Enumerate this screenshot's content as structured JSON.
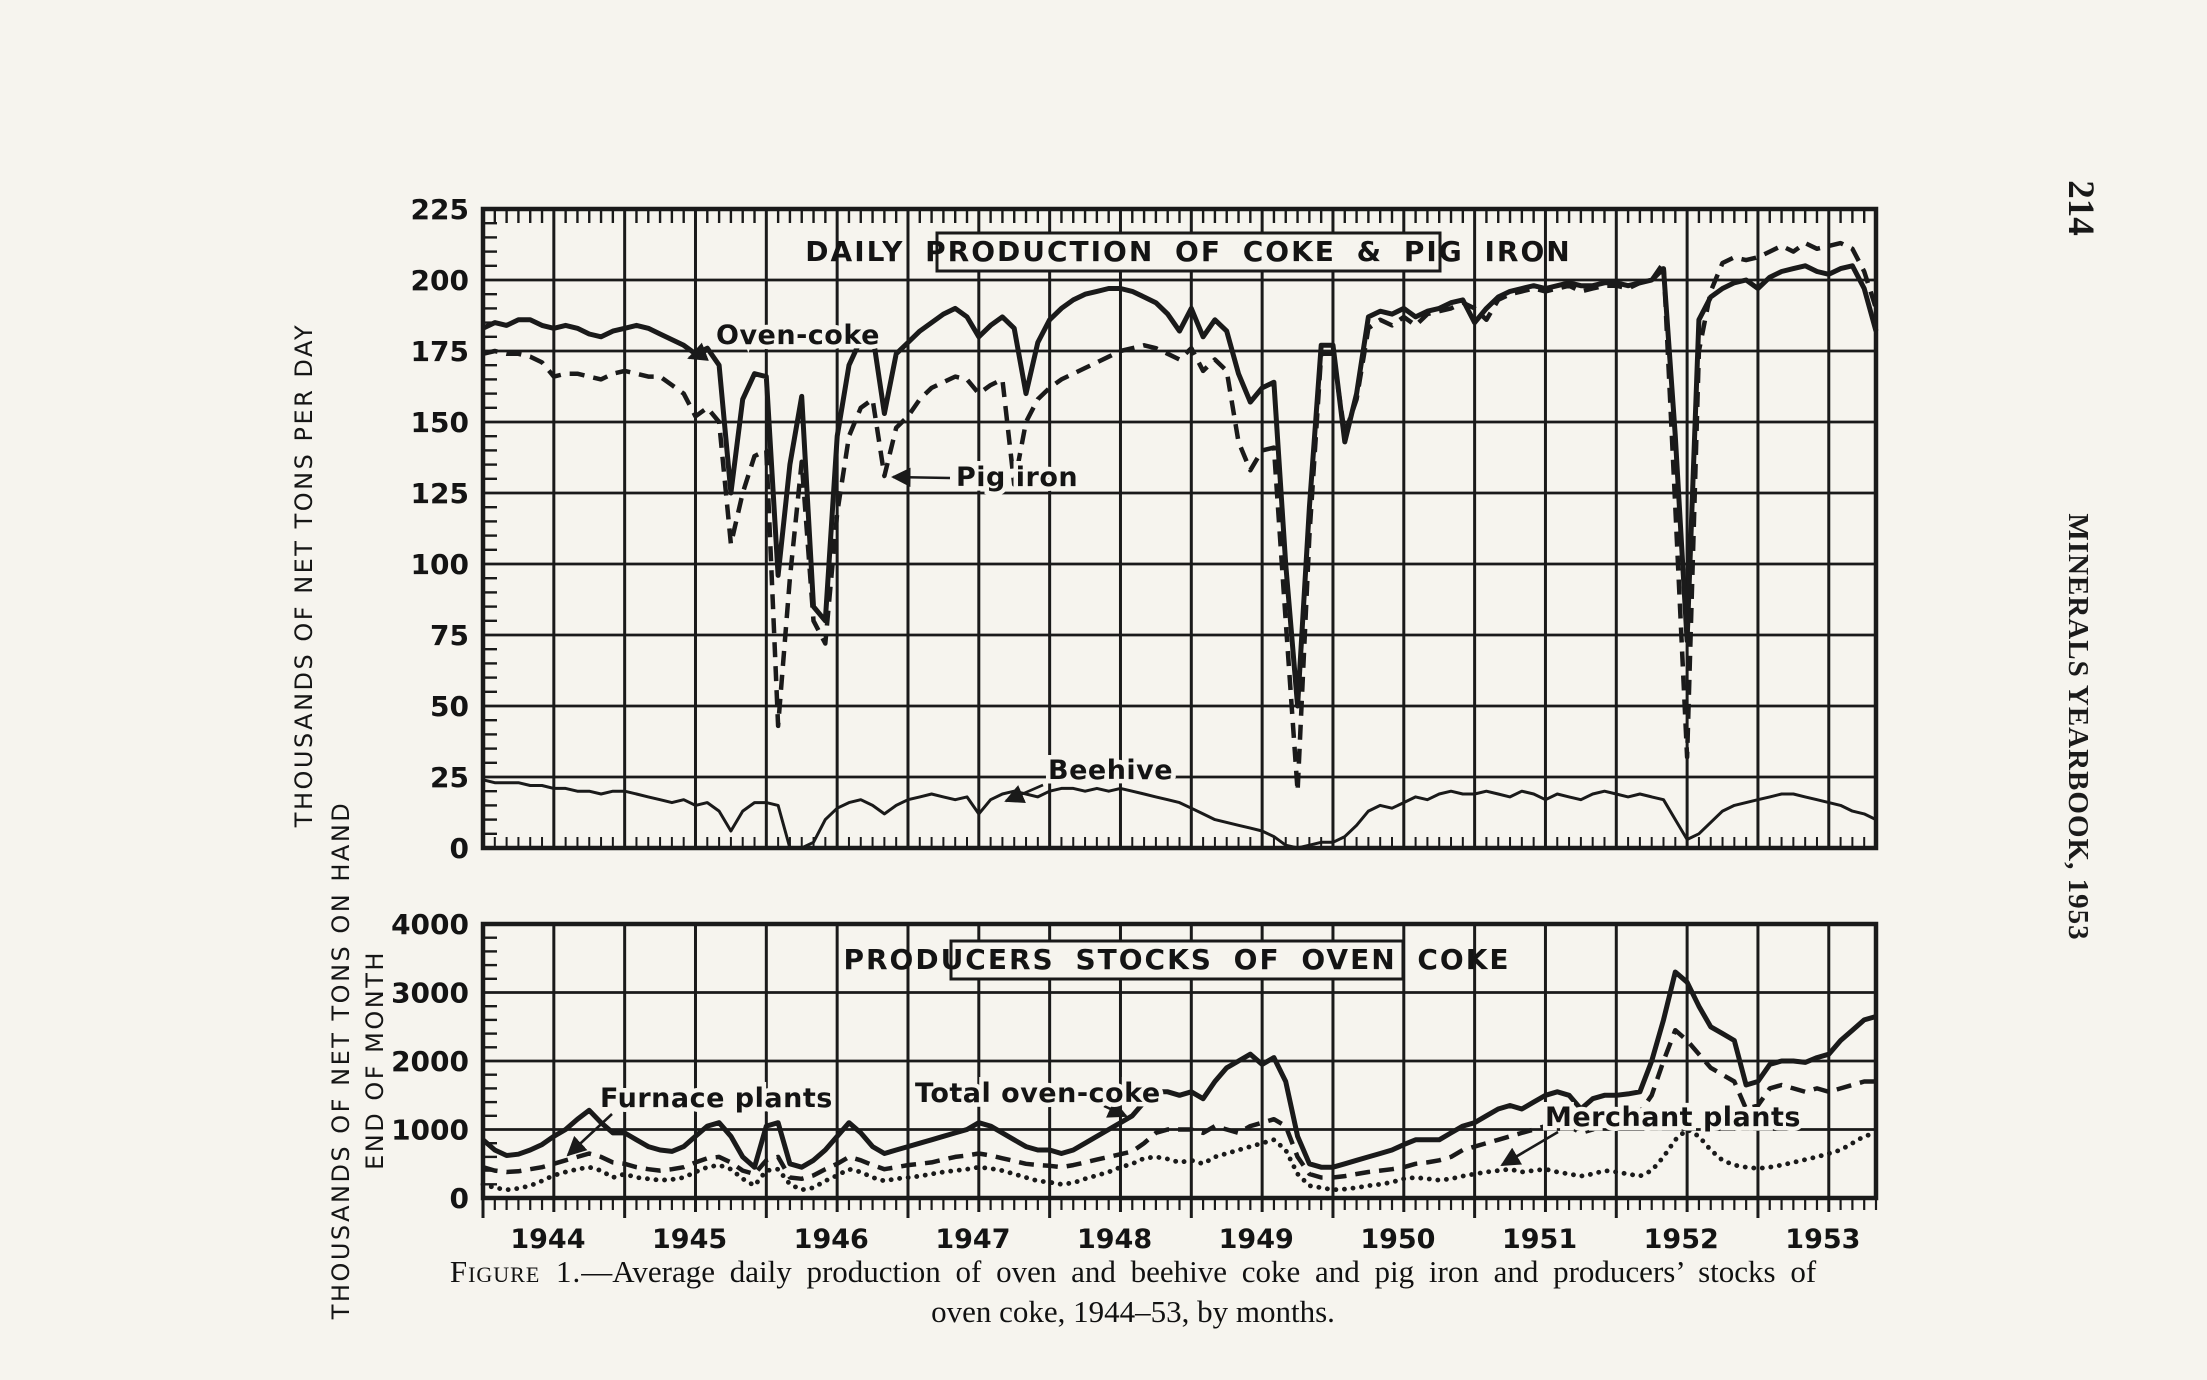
{
  "page": {
    "page_number": "214",
    "running_head": "MINERALS YEARBOOK, 1953",
    "caption": {
      "figure_label": "Figure 1.",
      "line1": "—Average daily production of oven and beehive coke and pig iron and producers’ stocks of",
      "line2": "oven coke, 1944–53, by months."
    }
  },
  "chart_data": [
    {
      "type": "line",
      "title": "DAILY PRODUCTION OF COKE & PIG IRON",
      "ylabel": "THOUSANDS OF NET TONS PER DAY",
      "ylim": [
        0,
        225
      ],
      "ytick_step": 25,
      "ytick_minor": 5,
      "x_years": [
        1944,
        1945,
        1946,
        1947,
        1948,
        1949,
        1950,
        1951,
        1952,
        1953
      ],
      "x_unit": "months",
      "x_start": "1944-01",
      "x_end": "1953-11",
      "grid": "vertical every 6 months, horizontal every 25 units",
      "series": [
        {
          "name": "Oven-coke",
          "style": "solid-bold",
          "values": [
            183,
            185,
            184,
            186,
            186,
            184,
            183,
            184,
            183,
            181,
            180,
            182,
            183,
            184,
            183,
            181,
            179,
            177,
            174,
            176,
            170,
            125,
            158,
            167,
            166,
            96,
            135,
            159,
            85,
            80,
            145,
            170,
            179,
            181,
            153,
            174,
            178,
            182,
            185,
            188,
            190,
            187,
            180,
            184,
            187,
            183,
            160,
            178,
            186,
            190,
            193,
            195,
            196,
            197,
            197,
            196,
            194,
            192,
            188,
            182,
            190,
            180,
            186,
            182,
            167,
            157,
            162,
            164,
            100,
            50,
            120,
            177,
            177,
            143,
            160,
            187,
            189,
            188,
            190,
            187,
            189,
            190,
            192,
            193,
            185,
            190,
            194,
            196,
            197,
            198,
            197,
            198,
            199,
            198,
            198,
            199,
            199,
            198,
            199,
            200,
            204,
            145,
            73,
            186,
            194,
            197,
            199,
            200,
            197,
            201,
            203,
            204,
            205,
            203,
            202,
            204,
            205,
            197,
            182
          ]
        },
        {
          "name": "Pig iron",
          "style": "dashed",
          "values": [
            174,
            175,
            174,
            174,
            173,
            171,
            166,
            167,
            167,
            166,
            165,
            167,
            168,
            167,
            166,
            166,
            163,
            160,
            152,
            155,
            150,
            107,
            125,
            138,
            140,
            43,
            95,
            136,
            80,
            72,
            118,
            145,
            155,
            158,
            131,
            148,
            152,
            158,
            162,
            164,
            166,
            165,
            160,
            163,
            165,
            128,
            150,
            158,
            162,
            165,
            167,
            169,
            171,
            173,
            175,
            176,
            177,
            176,
            174,
            172,
            176,
            168,
            172,
            168,
            143,
            133,
            140,
            141,
            80,
            20,
            110,
            174,
            174,
            146,
            158,
            183,
            186,
            184,
            187,
            184,
            188,
            189,
            190,
            192,
            190,
            186,
            193,
            195,
            196,
            197,
            196,
            197,
            198,
            196,
            197,
            198,
            198,
            197,
            199,
            200,
            206,
            120,
            32,
            175,
            196,
            206,
            208,
            207,
            208,
            210,
            212,
            210,
            213,
            211,
            212,
            213,
            211,
            203,
            190
          ]
        },
        {
          "name": "Beehive",
          "style": "solid-thin",
          "values": [
            24,
            23,
            23,
            23,
            22,
            22,
            21,
            21,
            20,
            20,
            19,
            20,
            20,
            19,
            18,
            17,
            16,
            17,
            15,
            16,
            13,
            6,
            13,
            16,
            16,
            15,
            0,
            0,
            2,
            10,
            14,
            16,
            17,
            15,
            12,
            15,
            17,
            18,
            19,
            18,
            17,
            18,
            12,
            17,
            19,
            20,
            19,
            18,
            20,
            21,
            21,
            20,
            21,
            20,
            21,
            20,
            19,
            18,
            17,
            16,
            14,
            12,
            10,
            9,
            8,
            7,
            6,
            4,
            1,
            0,
            1,
            2,
            2,
            4,
            8,
            13,
            15,
            14,
            16,
            18,
            17,
            19,
            20,
            19,
            19,
            20,
            19,
            18,
            20,
            19,
            17,
            19,
            18,
            17,
            19,
            20,
            19,
            18,
            19,
            18,
            17,
            10,
            3,
            5,
            9,
            13,
            15,
            16,
            17,
            18,
            19,
            19,
            18,
            17,
            16,
            15,
            13,
            12,
            10
          ]
        }
      ]
    },
    {
      "type": "line",
      "title": "PRODUCERS STOCKS OF OVEN COKE",
      "ylabel": "THOUSANDS OF NET TONS ON HAND",
      "ylabel_line2": "END OF MONTH",
      "ylim": [
        0,
        4000
      ],
      "ytick_step": 1000,
      "ytick_minor": 200,
      "x_years": [
        1944,
        1945,
        1946,
        1947,
        1948,
        1949,
        1950,
        1951,
        1952,
        1953
      ],
      "x_unit": "months",
      "x_start": "1944-01",
      "x_end": "1953-11",
      "grid": "vertical every 6 months, horizontal every 1000 units",
      "series": [
        {
          "name": "Total oven-coke",
          "style": "solid-bold",
          "values": [
            850,
            700,
            620,
            640,
            700,
            780,
            900,
            1000,
            1150,
            1280,
            1100,
            950,
            950,
            850,
            750,
            700,
            680,
            750,
            900,
            1050,
            1100,
            900,
            600,
            450,
            1050,
            1100,
            500,
            450,
            550,
            700,
            900,
            1100,
            950,
            750,
            650,
            700,
            750,
            800,
            850,
            900,
            950,
            1000,
            1100,
            1050,
            950,
            850,
            750,
            700,
            700,
            650,
            700,
            800,
            900,
            1000,
            1100,
            1200,
            1400,
            1550,
            1550,
            1500,
            1550,
            1450,
            1700,
            1900,
            2000,
            2100,
            1950,
            2050,
            1700,
            900,
            500,
            450,
            450,
            500,
            550,
            600,
            650,
            700,
            780,
            850,
            850,
            850,
            950,
            1050,
            1100,
            1200,
            1300,
            1350,
            1300,
            1400,
            1500,
            1550,
            1500,
            1300,
            1450,
            1500,
            1500,
            1520,
            1550,
            2000,
            2600,
            3300,
            3150,
            2800,
            2500,
            2400,
            2300,
            1650,
            1700,
            1950,
            2000,
            2000,
            1980,
            2050,
            2100,
            2300,
            2450,
            2600,
            2650
          ]
        },
        {
          "name": "Furnace plants",
          "style": "dashed",
          "values": [
            450,
            400,
            380,
            390,
            420,
            450,
            500,
            550,
            600,
            650,
            600,
            520,
            500,
            450,
            420,
            400,
            420,
            450,
            520,
            580,
            600,
            520,
            400,
            350,
            550,
            600,
            300,
            280,
            330,
            420,
            500,
            600,
            550,
            480,
            420,
            450,
            480,
            500,
            520,
            560,
            600,
            620,
            650,
            620,
            580,
            540,
            500,
            480,
            470,
            450,
            480,
            520,
            560,
            600,
            640,
            680,
            800,
            950,
            1000,
            1000,
            1000,
            950,
            1050,
            1000,
            950,
            1050,
            1100,
            1150,
            1050,
            600,
            350,
            300,
            300,
            320,
            350,
            380,
            400,
            420,
            450,
            500,
            520,
            550,
            600,
            700,
            750,
            800,
            850,
            900,
            950,
            1000,
            1050,
            1100,
            1050,
            950,
            1000,
            1100,
            1150,
            1200,
            1250,
            1500,
            2000,
            2450,
            2300,
            2100,
            1900,
            1800,
            1700,
            1300,
            1350,
            1600,
            1650,
            1600,
            1550,
            1600,
            1550,
            1600,
            1650,
            1700,
            1700
          ]
        },
        {
          "name": "Merchant plants",
          "style": "dotted",
          "values": [
            200,
            150,
            120,
            140,
            180,
            250,
            330,
            380,
            420,
            450,
            400,
            300,
            350,
            300,
            280,
            260,
            270,
            300,
            380,
            450,
            480,
            420,
            280,
            180,
            400,
            420,
            200,
            120,
            150,
            250,
            330,
            420,
            380,
            300,
            250,
            280,
            300,
            320,
            350,
            380,
            400,
            420,
            450,
            430,
            400,
            350,
            300,
            250,
            230,
            200,
            220,
            280,
            330,
            380,
            450,
            500,
            580,
            600,
            570,
            520,
            550,
            500,
            600,
            650,
            700,
            750,
            800,
            850,
            700,
            350,
            180,
            150,
            120,
            130,
            150,
            180,
            200,
            230,
            280,
            300,
            280,
            260,
            280,
            320,
            350,
            380,
            400,
            420,
            380,
            400,
            420,
            380,
            350,
            320,
            350,
            400,
            380,
            350,
            320,
            400,
            600,
            850,
            1000,
            900,
            700,
            550,
            480,
            450,
            430,
            450,
            480,
            520,
            560,
            600,
            650,
            700,
            800,
            900,
            950
          ]
        }
      ]
    }
  ]
}
